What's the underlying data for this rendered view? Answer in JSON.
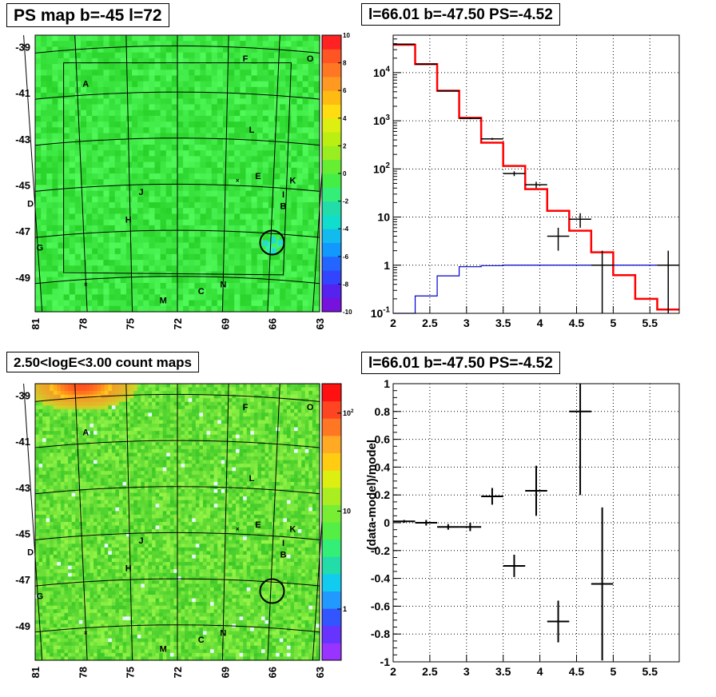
{
  "panels": {
    "ps_map": {
      "title": "PS map b=-45 l=72",
      "y_ticks": [
        "-39",
        "-41",
        "-43",
        "-45",
        "-47",
        "-49"
      ],
      "x_ticks": [
        "81",
        "78",
        "75",
        "72",
        "69",
        "66",
        "63"
      ],
      "scale_ticks": [
        "10",
        "8",
        "6",
        "4",
        "2",
        "0",
        "-2",
        "-4",
        "-6",
        "-8",
        "-10"
      ],
      "sources": [
        "A",
        "F",
        "O",
        "L",
        "E",
        "K",
        "J",
        "I",
        "B",
        "D",
        "H",
        "G",
        "C",
        "N",
        "M"
      ]
    },
    "spectrum": {
      "title": "l=66.01 b=-47.50 PS=-4.52",
      "x_ticks": [
        "2",
        "2.5",
        "3",
        "3.5",
        "4",
        "4.5",
        "5",
        "5.5"
      ],
      "y_ticks": [
        "10^4",
        "10^3",
        "10^2",
        "10",
        "1",
        "10^-1"
      ]
    },
    "count_map": {
      "title": "2.50<logE<3.00 count maps",
      "y_ticks": [
        "-39",
        "-41",
        "-43",
        "-45",
        "-47",
        "-49"
      ],
      "x_ticks": [
        "81",
        "78",
        "75",
        "72",
        "69",
        "66",
        "63"
      ],
      "scale_ticks": [
        "10^2",
        "10",
        "1"
      ],
      "sources": [
        "A",
        "F",
        "O",
        "L",
        "E",
        "K",
        "J",
        "I",
        "B",
        "D",
        "H",
        "G",
        "C",
        "N",
        "M"
      ]
    },
    "residual": {
      "title": "l=66.01 b=-47.50 PS=-4.52",
      "ylabel": "(data-model)/model",
      "x_ticks": [
        "2",
        "2.5",
        "3",
        "3.5",
        "4",
        "4.5",
        "5",
        "5.5"
      ],
      "y_ticks": [
        "1",
        "0.8",
        "0.6",
        "0.4",
        "0.2",
        "0",
        "-0.2",
        "-0.4",
        "-0.6",
        "-0.8",
        "-1"
      ]
    }
  },
  "colors": {
    "model": "#ff0000",
    "background": "#0000cc",
    "data": "#000000",
    "map_base": "#33ee44"
  },
  "chart_data": [
    {
      "type": "heatmap",
      "title": "PS map b=-45 l=72",
      "xlabel": "",
      "ylabel": "",
      "xlim": [
        81,
        63
      ],
      "ylim": [
        -50.5,
        -38.5
      ],
      "color_scale": [
        -10,
        10
      ],
      "circle_marker": {
        "l": 66.01,
        "b": -47.5
      }
    },
    {
      "type": "line",
      "title": "l=66.01 b=-47.50 PS=-4.52",
      "xlabel": "",
      "ylabel": "",
      "xlim": [
        2,
        5.9
      ],
      "ylim": [
        0.1,
        60000
      ],
      "yscale": "log",
      "grid": true,
      "bin_edges": [
        2.0,
        2.3,
        2.6,
        2.9,
        3.2,
        3.5,
        3.8,
        4.1,
        4.4,
        4.7,
        5.0,
        5.3,
        5.6,
        5.9
      ],
      "series": [
        {
          "values": [
            38000,
            15000,
            4200,
            1150,
            350,
            115,
            38,
            13.5,
            5.2,
            1.85,
            0.62,
            0.2,
            0.12
          ],
          "style": "step"
        },
        {
          "values": [
            0.05,
            0.23,
            0.6,
            0.93,
            0.98,
            1.0,
            1.0,
            1.0,
            1.0,
            1.0,
            1.0,
            1.0,
            1.0
          ],
          "style": "step"
        }
      ],
      "data_points": [
        {
          "x": 2.15,
          "y": 39000,
          "xerr": 0.15,
          "ylo": 38000,
          "yhi": 40000
        },
        {
          "x": 2.45,
          "y": 15000,
          "xerr": 0.15,
          "ylo": 14700,
          "yhi": 15300
        },
        {
          "x": 2.75,
          "y": 4150,
          "xerr": 0.15,
          "ylo": 4050,
          "yhi": 4250
        },
        {
          "x": 3.05,
          "y": 1120,
          "xerr": 0.15,
          "ylo": 1080,
          "yhi": 1160
        },
        {
          "x": 3.35,
          "y": 420,
          "xerr": 0.15,
          "ylo": 400,
          "yhi": 440
        },
        {
          "x": 3.65,
          "y": 80,
          "xerr": 0.15,
          "ylo": 71,
          "yhi": 89
        },
        {
          "x": 3.95,
          "y": 47,
          "xerr": 0.15,
          "ylo": 40,
          "yhi": 54
        },
        {
          "x": 4.25,
          "y": 4,
          "xerr": 0.15,
          "ylo": 2,
          "yhi": 6
        },
        {
          "x": 4.55,
          "y": 9,
          "xerr": 0.15,
          "ylo": 6,
          "yhi": 12
        },
        {
          "x": 4.85,
          "y": 1,
          "xerr": 0.15,
          "ylo": 0.1,
          "yhi": 2
        },
        {
          "x": 5.75,
          "y": 1,
          "xerr": 0.15,
          "ylo": 0.1,
          "yhi": 2
        }
      ]
    },
    {
      "type": "heatmap",
      "title": "2.50<logE<3.00 count maps",
      "xlabel": "",
      "ylabel": "",
      "xlim": [
        81,
        63
      ],
      "ylim": [
        -50.5,
        -38.5
      ],
      "color_scale": [
        0.3,
        200
      ],
      "color_scale_type": "log",
      "circle_marker": {
        "l": 66.01,
        "b": -47.5
      }
    },
    {
      "type": "scatter",
      "title": "l=66.01 b=-47.50 PS=-4.52",
      "xlabel": "",
      "ylabel": "(data-model)/model",
      "xlim": [
        2,
        5.9
      ],
      "ylim": [
        -1,
        1
      ],
      "grid": true,
      "points": [
        {
          "x": 2.15,
          "y": 0.01,
          "xerr": 0.15,
          "yerr": 0.01
        },
        {
          "x": 2.45,
          "y": 0.0,
          "xerr": 0.15,
          "yerr": 0.02
        },
        {
          "x": 2.75,
          "y": -0.03,
          "xerr": 0.15,
          "yerr": 0.02
        },
        {
          "x": 3.05,
          "y": -0.03,
          "xerr": 0.15,
          "yerr": 0.03
        },
        {
          "x": 3.35,
          "y": 0.19,
          "xerr": 0.15,
          "yerr": 0.06
        },
        {
          "x": 3.65,
          "y": -0.31,
          "xerr": 0.15,
          "yerr": 0.08
        },
        {
          "x": 3.95,
          "y": 0.23,
          "xerr": 0.15,
          "yerr": 0.18
        },
        {
          "x": 4.25,
          "y": -0.71,
          "xerr": 0.15,
          "yerr": 0.15
        },
        {
          "x": 4.55,
          "y": 0.8,
          "xerr": 0.15,
          "yerr": 0.6
        },
        {
          "x": 4.85,
          "y": -0.44,
          "xerr": 0.15,
          "yerr": 0.55
        }
      ]
    }
  ]
}
